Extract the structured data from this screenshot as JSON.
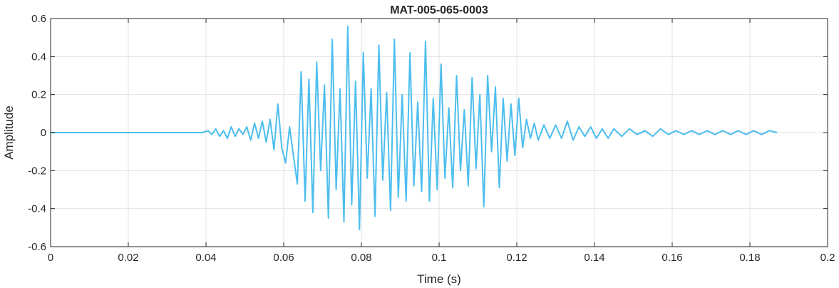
{
  "chart_data": {
    "type": "line",
    "title": "MAT-005-065-0003",
    "xlabel": "Time (s)",
    "ylabel": "Amplitude",
    "xlim": [
      0,
      0.2
    ],
    "ylim": [
      -0.6,
      0.6
    ],
    "xticks": [
      0,
      0.02,
      0.04,
      0.06,
      0.08,
      0.1,
      0.12,
      0.14,
      0.16,
      0.18,
      0.2
    ],
    "xtick_labels": [
      "0",
      "0.02",
      "0.04",
      "0.06",
      "0.08",
      "0.1",
      "0.12",
      "0.14",
      "0.16",
      "0.18",
      "0.2"
    ],
    "yticks": [
      -0.6,
      -0.4,
      -0.2,
      0,
      0.2,
      0.4,
      0.6
    ],
    "ytick_labels": [
      "-0.6",
      "-0.4",
      "-0.2",
      "0",
      "0.2",
      "0.4",
      "0.6"
    ],
    "grid": true,
    "line_color": "#4DBEEE",
    "series": [
      {
        "x": [
          0,
          0.039,
          0.0405,
          0.0415,
          0.0425,
          0.0435,
          0.0445,
          0.0455,
          0.0465,
          0.0475,
          0.0485,
          0.0495,
          0.0505,
          0.0515,
          0.0525,
          0.0535,
          0.0545,
          0.0555,
          0.0565,
          0.0575,
          0.0585,
          0.0595,
          0.0605,
          0.0615,
          0.0625,
          0.0635,
          0.0645,
          0.0655,
          0.0665,
          0.0675,
          0.0685,
          0.0695,
          0.0705,
          0.0715,
          0.0725,
          0.0735,
          0.0745,
          0.0755,
          0.0765,
          0.0775,
          0.0785,
          0.0795,
          0.0805,
          0.0815,
          0.0825,
          0.0835,
          0.0845,
          0.0855,
          0.0865,
          0.0875,
          0.0885,
          0.0895,
          0.0905,
          0.0915,
          0.0925,
          0.0935,
          0.0945,
          0.0955,
          0.0965,
          0.0975,
          0.0985,
          0.0995,
          0.1005,
          0.1015,
          0.1025,
          0.1035,
          0.1045,
          0.1055,
          0.1065,
          0.1075,
          0.1085,
          0.1095,
          0.1105,
          0.1115,
          0.1125,
          0.1135,
          0.1145,
          0.1155,
          0.1165,
          0.1175,
          0.1185,
          0.1195,
          0.1205,
          0.1215,
          0.1225,
          0.1235,
          0.1245,
          0.1255,
          0.127,
          0.1285,
          0.13,
          0.1315,
          0.133,
          0.1345,
          0.136,
          0.1375,
          0.139,
          0.1405,
          0.142,
          0.1435,
          0.145,
          0.147,
          0.149,
          0.151,
          0.153,
          0.155,
          0.157,
          0.159,
          0.161,
          0.163,
          0.165,
          0.167,
          0.169,
          0.171,
          0.173,
          0.175,
          0.177,
          0.179,
          0.181,
          0.183,
          0.185,
          0.187
        ],
        "y": [
          0,
          0,
          0.01,
          -0.01,
          0.02,
          -0.02,
          0.01,
          -0.03,
          0.03,
          -0.02,
          0.02,
          -0.01,
          0.03,
          -0.04,
          0.05,
          -0.03,
          0.06,
          -0.05,
          0.07,
          -0.09,
          0.15,
          -0.08,
          -0.16,
          0.03,
          -0.12,
          -0.27,
          0.32,
          -0.36,
          0.28,
          -0.42,
          0.37,
          -0.2,
          0.25,
          -0.45,
          0.49,
          -0.3,
          0.23,
          -0.47,
          0.56,
          -0.38,
          0.27,
          -0.51,
          0.42,
          -0.24,
          0.23,
          -0.44,
          0.46,
          -0.25,
          0.21,
          -0.41,
          0.49,
          -0.34,
          0.2,
          -0.36,
          0.42,
          -0.28,
          0.16,
          -0.31,
          0.48,
          -0.36,
          0.18,
          -0.3,
          0.36,
          -0.24,
          0.13,
          -0.29,
          0.3,
          -0.2,
          0.12,
          -0.28,
          0.29,
          -0.19,
          0.2,
          -0.39,
          0.3,
          -0.1,
          0.24,
          -0.29,
          0.18,
          -0.15,
          0.15,
          -0.12,
          0.18,
          -0.08,
          0.07,
          -0.03,
          0.05,
          -0.04,
          0.04,
          -0.03,
          0.04,
          -0.03,
          0.06,
          -0.04,
          0.03,
          -0.02,
          0.03,
          -0.03,
          0.02,
          -0.03,
          0.02,
          -0.02,
          0.02,
          -0.01,
          0.01,
          -0.02,
          0.02,
          -0.01,
          0.01,
          -0.01,
          0.01,
          -0.01,
          0.01,
          -0.01,
          0.01,
          -0.01,
          0.01,
          -0.01,
          0.01,
          -0.01,
          0.01,
          0
        ]
      }
    ]
  }
}
